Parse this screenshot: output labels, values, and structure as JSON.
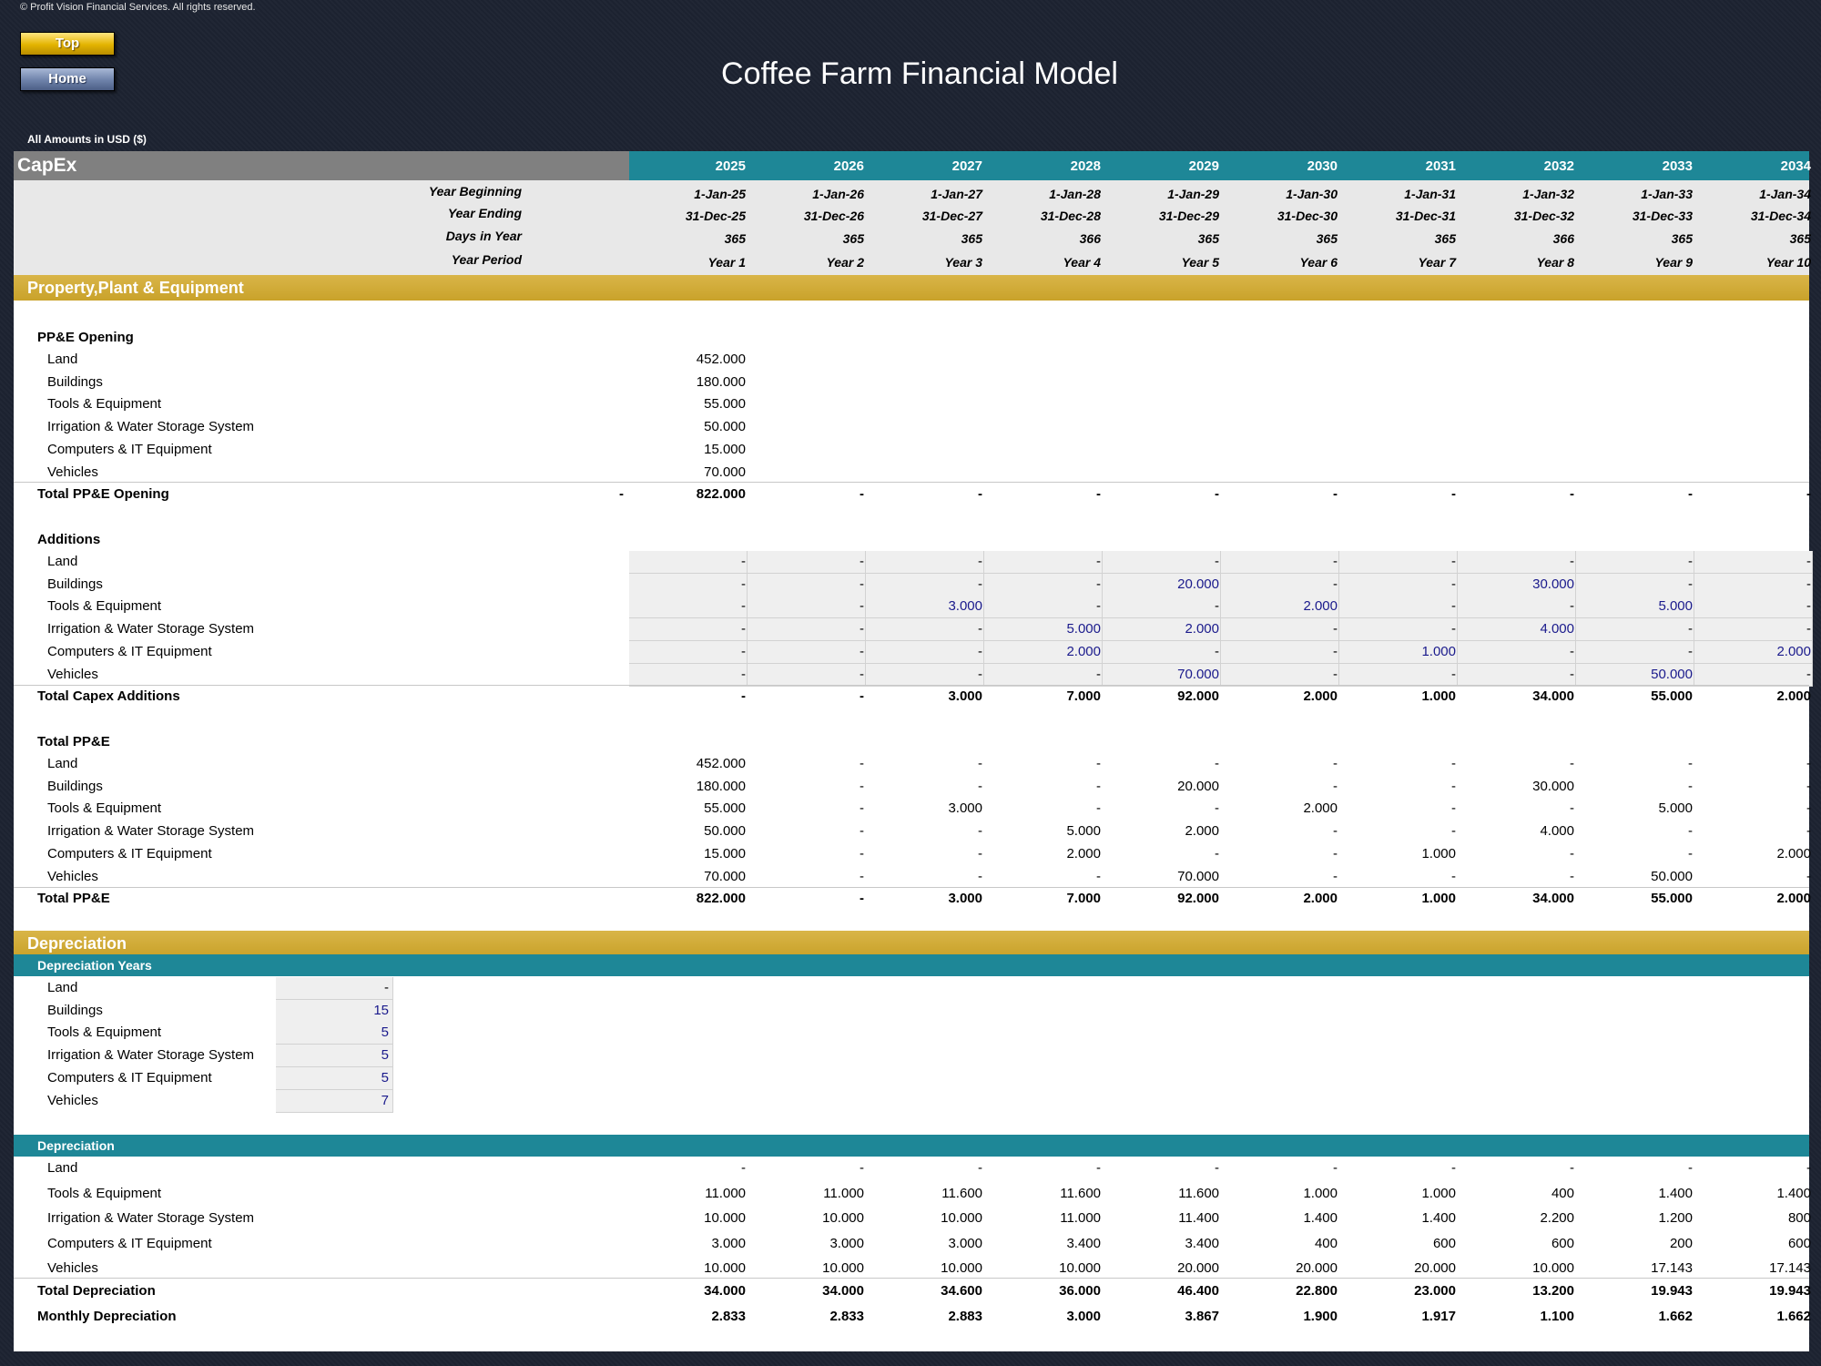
{
  "copyright": "© Profit Vision Financial Services. All rights reserved.",
  "nav": {
    "top_label": "Top",
    "home_label": "Home"
  },
  "title": "Coffee Farm Financial Model",
  "units": "All Amounts in  USD ($)",
  "sheet_name": "CapEx",
  "years": [
    "2025",
    "2026",
    "2027",
    "2028",
    "2029",
    "2030",
    "2031",
    "2032",
    "2033",
    "2034"
  ],
  "timeline": [
    {
      "label": "Year Beginning",
      "values": [
        "1-Jan-25",
        "1-Jan-26",
        "1-Jan-27",
        "1-Jan-28",
        "1-Jan-29",
        "1-Jan-30",
        "1-Jan-31",
        "1-Jan-32",
        "1-Jan-33",
        "1-Jan-34"
      ]
    },
    {
      "label": "Year Ending",
      "values": [
        "31-Dec-25",
        "31-Dec-26",
        "31-Dec-27",
        "31-Dec-28",
        "31-Dec-29",
        "31-Dec-30",
        "31-Dec-31",
        "31-Dec-32",
        "31-Dec-33",
        "31-Dec-34"
      ]
    },
    {
      "label": "Days in Year",
      "values": [
        "365",
        "365",
        "365",
        "366",
        "365",
        "365",
        "365",
        "366",
        "365",
        "365"
      ]
    },
    {
      "label": "Year Period",
      "values": [
        "Year 1",
        "Year 2",
        "Year 3",
        "Year 4",
        "Year 5",
        "Year 6",
        "Year 7",
        "Year 8",
        "Year 9",
        "Year 10"
      ]
    }
  ],
  "ppe_section": {
    "title": "Property,Plant & Equipment",
    "opening": {
      "header": "PP&E Opening",
      "items": [
        {
          "label": "Land",
          "value": "452.000"
        },
        {
          "label": "Buildings",
          "value": "180.000"
        },
        {
          "label": "Tools & Equipment",
          "value": "55.000"
        },
        {
          "label": "Irrigation & Water Storage System",
          "value": "50.000"
        },
        {
          "label": "Computers & IT Equipment",
          "value": "15.000"
        },
        {
          "label": "Vehicles",
          "value": "70.000"
        }
      ],
      "total": {
        "label": "Total PP&E Opening",
        "pre": "-",
        "values": [
          "822.000",
          "-",
          "-",
          "-",
          "-",
          "-",
          "-",
          "-",
          "-",
          "-"
        ]
      }
    },
    "additions": {
      "header": "Additions",
      "items": [
        {
          "label": "Land",
          "values": [
            "-",
            "-",
            "-",
            "-",
            "-",
            "-",
            "-",
            "-",
            "-",
            "-"
          ]
        },
        {
          "label": "Buildings",
          "values": [
            "-",
            "-",
            "-",
            "-",
            "20.000",
            "-",
            "-",
            "30.000",
            "-",
            "-"
          ]
        },
        {
          "label": "Tools & Equipment",
          "values": [
            "-",
            "-",
            "3.000",
            "-",
            "-",
            "2.000",
            "-",
            "-",
            "5.000",
            "-"
          ]
        },
        {
          "label": "Irrigation & Water Storage System",
          "values": [
            "-",
            "-",
            "-",
            "5.000",
            "2.000",
            "-",
            "-",
            "4.000",
            "-",
            "-"
          ]
        },
        {
          "label": "Computers & IT Equipment",
          "values": [
            "-",
            "-",
            "-",
            "2.000",
            "-",
            "-",
            "1.000",
            "-",
            "-",
            "2.000"
          ]
        },
        {
          "label": "Vehicles",
          "values": [
            "-",
            "-",
            "-",
            "-",
            "70.000",
            "-",
            "-",
            "-",
            "50.000",
            "-"
          ]
        }
      ],
      "total": {
        "label": "Total Capex Additions",
        "values": [
          "-",
          "-",
          "3.000",
          "7.000",
          "92.000",
          "2.000",
          "1.000",
          "34.000",
          "55.000",
          "2.000"
        ]
      }
    },
    "total_ppe": {
      "header": "Total PP&E",
      "items": [
        {
          "label": "Land",
          "values": [
            "452.000",
            "-",
            "-",
            "-",
            "-",
            "-",
            "-",
            "-",
            "-",
            "-"
          ]
        },
        {
          "label": "Buildings",
          "values": [
            "180.000",
            "-",
            "-",
            "-",
            "20.000",
            "-",
            "-",
            "30.000",
            "-",
            "-"
          ]
        },
        {
          "label": "Tools & Equipment",
          "values": [
            "55.000",
            "-",
            "3.000",
            "-",
            "-",
            "2.000",
            "-",
            "-",
            "5.000",
            "-"
          ]
        },
        {
          "label": "Irrigation & Water Storage System",
          "values": [
            "50.000",
            "-",
            "-",
            "5.000",
            "2.000",
            "-",
            "-",
            "4.000",
            "-",
            "-"
          ]
        },
        {
          "label": "Computers & IT Equipment",
          "values": [
            "15.000",
            "-",
            "-",
            "2.000",
            "-",
            "-",
            "1.000",
            "-",
            "-",
            "2.000"
          ]
        },
        {
          "label": "Vehicles",
          "values": [
            "70.000",
            "-",
            "-",
            "-",
            "70.000",
            "-",
            "-",
            "-",
            "50.000",
            "-"
          ]
        }
      ],
      "total": {
        "label": "Total PP&E",
        "values": [
          "822.000",
          "-",
          "3.000",
          "7.000",
          "92.000",
          "2.000",
          "1.000",
          "34.000",
          "55.000",
          "2.000"
        ]
      }
    }
  },
  "depreciation_section": {
    "title": "Depreciation",
    "years_header": "Depreciation Years",
    "years_items": [
      {
        "label": "Land",
        "value": "-"
      },
      {
        "label": "Buildings",
        "value": "15"
      },
      {
        "label": "Tools & Equipment",
        "value": "5"
      },
      {
        "label": "Irrigation & Water Storage System",
        "value": "5"
      },
      {
        "label": "Computers & IT Equipment",
        "value": "5"
      },
      {
        "label": "Vehicles",
        "value": "7"
      }
    ],
    "dep_header": "Depreciation",
    "dep_items": [
      {
        "label": "Land",
        "values": [
          "-",
          "-",
          "-",
          "-",
          "-",
          "-",
          "-",
          "-",
          "-",
          "-"
        ]
      },
      {
        "label": "Tools & Equipment",
        "values": [
          "11.000",
          "11.000",
          "11.600",
          "11.600",
          "11.600",
          "1.000",
          "1.000",
          "400",
          "1.400",
          "1.400"
        ]
      },
      {
        "label": "Irrigation & Water Storage System",
        "values": [
          "10.000",
          "10.000",
          "10.000",
          "11.000",
          "11.400",
          "1.400",
          "1.400",
          "2.200",
          "1.200",
          "800"
        ]
      },
      {
        "label": "Computers & IT Equipment",
        "values": [
          "3.000",
          "3.000",
          "3.000",
          "3.400",
          "3.400",
          "400",
          "600",
          "600",
          "200",
          "600"
        ]
      },
      {
        "label": "Vehicles",
        "values": [
          "10.000",
          "10.000",
          "10.000",
          "10.000",
          "20.000",
          "20.000",
          "20.000",
          "10.000",
          "17.143",
          "17.143"
        ]
      }
    ],
    "total": {
      "label": "Total Depreciation",
      "values": [
        "34.000",
        "34.000",
        "34.600",
        "36.000",
        "46.400",
        "22.800",
        "23.000",
        "13.200",
        "19.943",
        "19.943"
      ]
    },
    "monthly": {
      "label": "Monthly Depreciation",
      "values": [
        "2.833",
        "2.833",
        "2.883",
        "3.000",
        "3.867",
        "1.900",
        "1.917",
        "1.100",
        "1.662",
        "1.662"
      ]
    }
  },
  "colors": {
    "teal": "#1e8797",
    "gold": "#d4ad3a",
    "grey_header": "#808080",
    "input_blue": "#1a1a8c"
  }
}
